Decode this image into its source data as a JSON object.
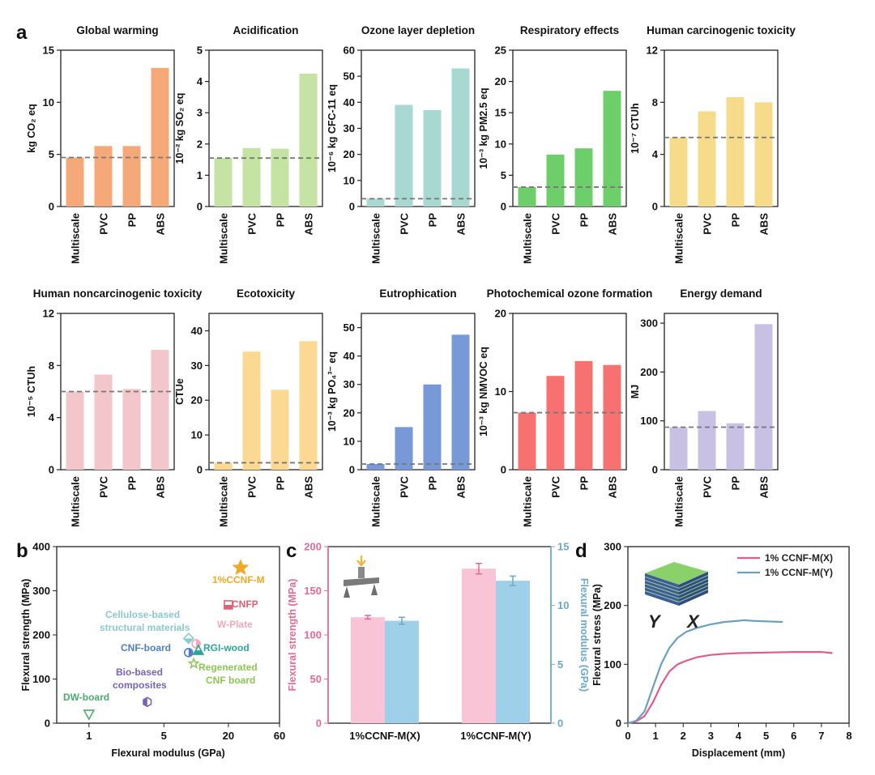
{
  "panel_letters": {
    "a": "a",
    "b": "b",
    "c": "c",
    "d": "d"
  },
  "panel_a": {
    "categories": [
      "Multiscale",
      "PVC",
      "PP",
      "ABS"
    ],
    "charts": [
      {
        "title": "Global warming",
        "ylabel": "kg CO₂ eq",
        "ylim": [
          0,
          15
        ],
        "ticks": [
          0,
          5,
          10,
          15
        ],
        "values": [
          4.7,
          5.8,
          5.8,
          13.3
        ],
        "color": "#f5a878",
        "ref": 4.7
      },
      {
        "title": "Acidification",
        "ylabel": "10⁻² kg SO₂ eq",
        "ylim": [
          0,
          5
        ],
        "ticks": [
          0,
          1,
          2,
          3,
          4,
          5
        ],
        "values": [
          1.55,
          1.87,
          1.85,
          4.25
        ],
        "color": "#c5e3a3",
        "ref": 1.55
      },
      {
        "title": "Ozone layer depletion",
        "ylabel": "10⁻⁶ kg CFC-11 eq",
        "ylim": [
          0,
          60
        ],
        "ticks": [
          0,
          10,
          20,
          30,
          40,
          50,
          60
        ],
        "values": [
          3,
          39,
          37,
          53
        ],
        "color": "#a8d8d2",
        "ref": 3
      },
      {
        "title": "Respiratory effects",
        "ylabel": "10⁻³ kg PM2.5 eq",
        "ylim": [
          0,
          25
        ],
        "ticks": [
          0,
          5,
          10,
          15,
          20,
          25
        ],
        "values": [
          3.1,
          8.3,
          9.3,
          18.5
        ],
        "color": "#6ccf6a",
        "ref": 3.1
      },
      {
        "title": "Human carcinogenic toxicity",
        "ylabel": "10⁻⁷ CTUh",
        "ylim": [
          0,
          12
        ],
        "ticks": [
          0,
          4,
          8,
          12
        ],
        "values": [
          5.3,
          7.3,
          8.4,
          8.0
        ],
        "color": "#f6dc8a",
        "ref": 5.3
      },
      {
        "title": "Human noncarcinogenic toxicity",
        "ylabel": "10⁻⁵ CTUh",
        "ylim": [
          0,
          12
        ],
        "ticks": [
          0,
          4,
          8,
          12
        ],
        "values": [
          6.0,
          7.3,
          6.2,
          9.2
        ],
        "color": "#f3c6cc",
        "ref": 6.0
      },
      {
        "title": "Ecotoxicity",
        "ylabel": "CTUe",
        "ylim": [
          0,
          45
        ],
        "ticks": [
          0,
          10,
          20,
          30,
          40
        ],
        "values": [
          2,
          34,
          23,
          37
        ],
        "color": "#fbd993",
        "ref": 2
      },
      {
        "title": "Eutrophication",
        "ylabel": "10⁻³ kg PO₄³⁻ eq",
        "ylim": [
          0,
          55
        ],
        "ticks": [
          0,
          10,
          20,
          30,
          40,
          50
        ],
        "values": [
          2,
          15,
          30,
          47.5
        ],
        "color": "#7799d8",
        "ref": 2
      },
      {
        "title": "Photochemical ozone formation",
        "ylabel": "10⁻³ kg NMVOC eq",
        "ylim": [
          0,
          20
        ],
        "ticks": [
          0,
          10,
          20
        ],
        "values": [
          7.3,
          12,
          13.9,
          13.4
        ],
        "color": "#f6716f",
        "ref": 7.3
      },
      {
        "title": "Energy demand",
        "ylabel": "MJ",
        "ylim": [
          0,
          320
        ],
        "ticks": [
          0,
          100,
          200,
          300
        ],
        "values": [
          87,
          120,
          95,
          298
        ],
        "color": "#c9c1e3",
        "ref": 87
      }
    ]
  },
  "panel_b": {
    "xlabel": "Flexural modulus (GPa)",
    "ylabel": "Flexural strength (MPa)",
    "xlim": [
      0.5,
      60
    ],
    "ylim": [
      0,
      400
    ],
    "xticks": [
      1,
      5,
      20,
      60
    ],
    "yticks": [
      0,
      100,
      200,
      300,
      400
    ],
    "points": [
      {
        "name": "1%CCNF-M",
        "x": 26,
        "y": 352,
        "color": "#f0a826",
        "marker": "star"
      },
      {
        "name": "CNFP",
        "x": 20,
        "y": 268,
        "color": "#e06078",
        "marker": "square"
      },
      {
        "name": "Cellulose-based structural materials",
        "x": 8.5,
        "y": 192,
        "color": "#8cc9cf",
        "marker": "diamond"
      },
      {
        "name": "W-Plate",
        "x": 10,
        "y": 180,
        "color": "#f2a7b9",
        "marker": "circle"
      },
      {
        "name": "CNF-board",
        "x": 8.5,
        "y": 160,
        "color": "#4f7fbf",
        "marker": "halfcircle"
      },
      {
        "name": "RGI-wood",
        "x": 10.5,
        "y": 165,
        "color": "#2aa79a",
        "marker": "triangle"
      },
      {
        "name": "Regenerated CNF board",
        "x": 9.5,
        "y": 135,
        "color": "#8dc653",
        "marker": "star"
      },
      {
        "name": "Bio-based composites",
        "x": 3.5,
        "y": 48,
        "color": "#7864b2",
        "marker": "hexagon"
      },
      {
        "name": "DW-board",
        "x": 1.0,
        "y": 20,
        "color": "#4aab6c",
        "marker": "tri-down"
      }
    ],
    "labels": {
      "ccnf": "1%CCNF-M",
      "cnfp": "CNFP",
      "cell1": "Cellulose-based",
      "cell2": "structural materials",
      "wplate": "W-Plate",
      "cnfboard": "CNF-board",
      "rgi": "RGI-wood",
      "regen1": "Regenerated",
      "regen2": "CNF board",
      "bio1": "Bio-based",
      "bio2": "composites",
      "dw": "DW-board"
    }
  },
  "panel_c": {
    "categories": [
      "1%CCNF-M(X)",
      "1%CCNF-M(Y)"
    ],
    "ylabel_left": "Flexural strength (MPa)",
    "ylabel_right": "Flexural modulus (GPa)",
    "ylim_left": [
      0,
      200
    ],
    "ylim_right": [
      0,
      15
    ],
    "yticks_left": [
      0,
      50,
      100,
      150,
      200
    ],
    "yticks_right": [
      0,
      5,
      10,
      15
    ],
    "strength": [
      120,
      175
    ],
    "strength_err": [
      2,
      6
    ],
    "modulus": [
      8.7,
      12.1
    ],
    "modulus_err": [
      0.3,
      0.4
    ],
    "colors": {
      "strength": "#f8c4d6",
      "modulus": "#9fd0ea",
      "left_axis": "#e36b94",
      "right_axis": "#6aa9c9"
    }
  },
  "panel_d": {
    "xlabel": "Displacement (mm)",
    "ylabel": "Flexural stress (MPa)",
    "xlim": [
      0,
      8
    ],
    "ylim": [
      0,
      300
    ],
    "xticks": [
      0,
      1,
      2,
      3,
      4,
      5,
      6,
      7,
      8
    ],
    "yticks": [
      0,
      100,
      200,
      300
    ],
    "axis_letters": {
      "y": "Y",
      "x": "X"
    },
    "series": [
      {
        "name": "1% CCNF-M(X)",
        "color": "#e45a8a",
        "points": [
          [
            0,
            0
          ],
          [
            0.3,
            3
          ],
          [
            0.6,
            12
          ],
          [
            0.9,
            35
          ],
          [
            1.2,
            65
          ],
          [
            1.5,
            88
          ],
          [
            1.8,
            100
          ],
          [
            2.1,
            106
          ],
          [
            2.5,
            112
          ],
          [
            3.0,
            116
          ],
          [
            3.5,
            118
          ],
          [
            4.0,
            119
          ],
          [
            5.0,
            120
          ],
          [
            6.0,
            121
          ],
          [
            7.0,
            121
          ],
          [
            7.4,
            119
          ]
        ]
      },
      {
        "name": "1% CCNF-M(Y)",
        "color": "#6a9fc2",
        "points": [
          [
            0,
            0
          ],
          [
            0.3,
            4
          ],
          [
            0.6,
            20
          ],
          [
            0.9,
            60
          ],
          [
            1.2,
            100
          ],
          [
            1.5,
            128
          ],
          [
            1.8,
            145
          ],
          [
            2.1,
            155
          ],
          [
            2.5,
            162
          ],
          [
            3.0,
            168
          ],
          [
            3.5,
            172
          ],
          [
            4.0,
            174
          ],
          [
            4.2,
            175
          ],
          [
            4.5,
            174
          ],
          [
            5.0,
            173
          ],
          [
            5.6,
            172
          ]
        ]
      }
    ]
  }
}
